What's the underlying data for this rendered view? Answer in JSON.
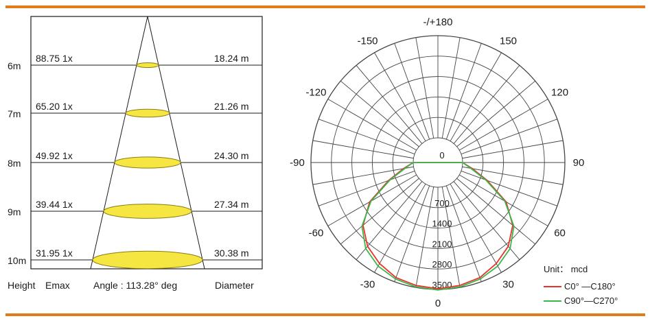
{
  "colors": {
    "rule": "#e07b1e",
    "frame": "#1a1a1a",
    "beam_fill": "#f5e642",
    "beam_stroke": "#8a7a10",
    "grid": "#444444",
    "series_c0": "#e8322a",
    "series_c90": "#3cb54a"
  },
  "cone": {
    "rows": [
      {
        "height": "6m",
        "emax": "88.75 1x",
        "diameter": "18.24 m"
      },
      {
        "height": "7m",
        "emax": "65.20 1x",
        "diameter": "21.26 m"
      },
      {
        "height": "8m",
        "emax": "49.92 1x",
        "diameter": "24.30 m"
      },
      {
        "height": "9m",
        "emax": "39.44 1x",
        "diameter": "27.34 m"
      },
      {
        "height": "10m",
        "emax": "31.95 1x",
        "diameter": "30.38 m"
      }
    ],
    "footer": {
      "height": "Height",
      "emax": "Emax",
      "angle": "Angle : 113.28° deg",
      "diameter": "Diameter"
    }
  },
  "polar": {
    "angle_labels": [
      {
        "deg": 180,
        "text": "-/+180"
      },
      {
        "deg": -150,
        "text": "-150"
      },
      {
        "deg": 150,
        "text": "150"
      },
      {
        "deg": -120,
        "text": "-120"
      },
      {
        "deg": 120,
        "text": "120"
      },
      {
        "deg": -90,
        "text": "-90"
      },
      {
        "deg": 90,
        "text": "90"
      },
      {
        "deg": -60,
        "text": "-60"
      },
      {
        "deg": 60,
        "text": "60"
      },
      {
        "deg": -30,
        "text": "-30"
      },
      {
        "deg": 30,
        "text": "30"
      },
      {
        "deg": 0,
        "text": "0"
      }
    ],
    "radial_labels": [
      "0",
      "700",
      "1400",
      "2100",
      "2800",
      "3500"
    ],
    "radial_max": 3500,
    "unit": "Unit： mcd",
    "legend": [
      {
        "text": "C0°  —C180°"
      },
      {
        "text": "C90°—C270°"
      }
    ]
  },
  "chart_data": {
    "type": "line",
    "coordinate_system": "polar",
    "r_unit": "mcd",
    "r_range": [
      0,
      3500
    ],
    "theta_unit": "deg",
    "series": [
      {
        "name": "C0°  —C180°",
        "color": "#e8322a",
        "theta": [
          -90,
          -80,
          -70,
          -60,
          -50,
          -40,
          -30,
          -20,
          -10,
          0,
          10,
          20,
          30,
          40,
          50,
          60,
          70,
          80,
          90
        ],
        "r": [
          0,
          350,
          950,
          1850,
          2500,
          2900,
          3150,
          3350,
          3430,
          3480,
          3430,
          3350,
          3150,
          2900,
          2500,
          1850,
          950,
          350,
          0
        ]
      },
      {
        "name": "C90°—C270°",
        "color": "#3cb54a",
        "theta": [
          -90,
          -80,
          -70,
          -60,
          -50,
          -40,
          -30,
          -20,
          -10,
          0,
          10,
          20,
          30,
          40,
          50,
          60,
          70,
          80,
          90
        ],
        "r": [
          0,
          300,
          900,
          1800,
          2550,
          3000,
          3250,
          3400,
          3480,
          3520,
          3480,
          3400,
          3250,
          3000,
          2550,
          1800,
          900,
          300,
          0
        ]
      }
    ]
  }
}
